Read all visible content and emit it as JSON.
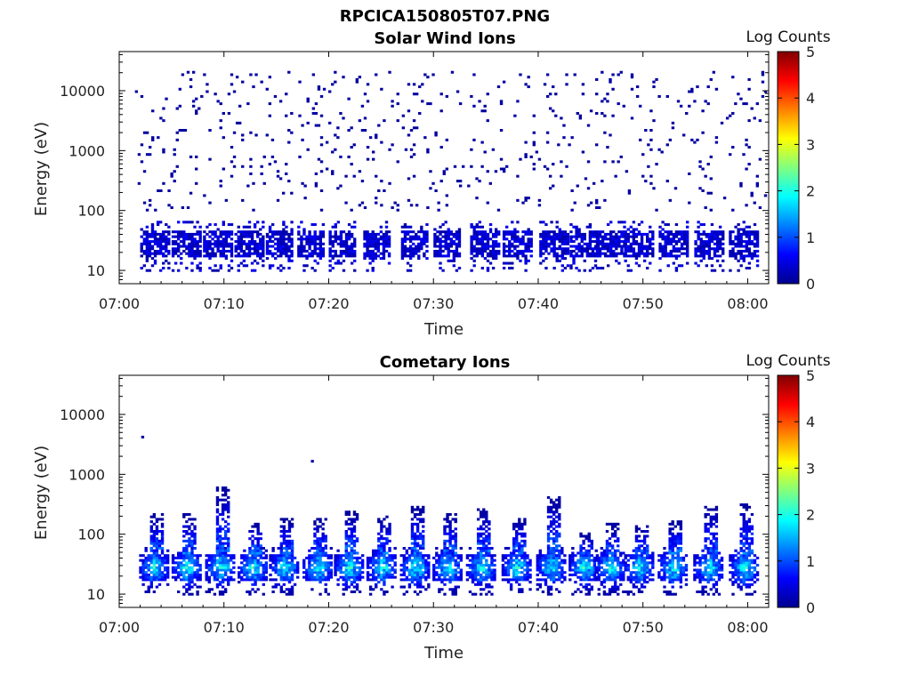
{
  "header": {
    "title": "RPCICA150805T07.PNG"
  },
  "chart_data": [
    {
      "type": "heatmap",
      "title": "Solar Wind Ions",
      "xlabel": "Time",
      "ylabel": "Energy (eV)",
      "x_tick_labels": [
        "07:00",
        "07:10",
        "07:20",
        "07:30",
        "07:40",
        "07:50",
        "08:00"
      ],
      "x_tick_minutes": [
        0,
        10,
        20,
        30,
        40,
        50,
        60
      ],
      "xlim_minutes": [
        0,
        62
      ],
      "y_scale": "log",
      "ylim": [
        6,
        45000
      ],
      "y_tick_labels": [
        "10",
        "100",
        "1000",
        "10000"
      ],
      "y_tick_values": [
        10,
        100,
        1000,
        10000
      ],
      "colorbar": {
        "label": "Log Counts",
        "ticks": [
          "0",
          "1",
          "2",
          "3",
          "4",
          "5"
        ],
        "range": [
          0,
          5
        ]
      },
      "bursts_minutes": [
        3.3,
        6.3,
        9.3,
        12.3,
        15.3,
        18.3,
        21.3,
        24.6,
        28.2,
        31.3,
        34.8,
        37.9,
        41.4,
        44.3,
        46.8,
        49.5,
        52.8,
        56.2,
        59.5
      ],
      "band_energy_eV": [
        18,
        45
      ],
      "scatter_energy_eV": [
        100,
        20000
      ],
      "typical_log_counts": 0.1,
      "max_log_counts": 0.6
    },
    {
      "type": "heatmap",
      "title": "Cometary Ions",
      "xlabel": "Time",
      "ylabel": "Energy (eV)",
      "x_tick_labels": [
        "07:00",
        "07:10",
        "07:20",
        "07:30",
        "07:40",
        "07:50",
        "08:00"
      ],
      "x_tick_minutes": [
        0,
        10,
        20,
        30,
        40,
        50,
        60
      ],
      "xlim_minutes": [
        0,
        62
      ],
      "y_scale": "log",
      "ylim": [
        6,
        45000
      ],
      "y_tick_labels": [
        "10",
        "100",
        "1000",
        "10000"
      ],
      "y_tick_values": [
        10,
        100,
        1000,
        10000
      ],
      "colorbar": {
        "label": "Log Counts",
        "ticks": [
          "0",
          "1",
          "2",
          "3",
          "4",
          "5"
        ],
        "range": [
          0,
          5
        ]
      },
      "bursts_minutes": [
        3.3,
        6.4,
        9.6,
        12.7,
        15.7,
        18.9,
        21.9,
        25.0,
        28.2,
        31.3,
        34.5,
        37.9,
        41.2,
        44.3,
        46.8,
        49.6,
        52.8,
        56.2,
        59.6
      ],
      "burst_peak_energy_eV": [
        220,
        220,
        600,
        150,
        180,
        180,
        240,
        200,
        280,
        220,
        260,
        180,
        420,
        100,
        150,
        130,
        160,
        280,
        300
      ],
      "band_energy_eV": [
        18,
        45
      ],
      "peak_log_counts": 2.3,
      "isolated_points": [
        {
          "minute": 2.1,
          "energy_eV": 4200
        },
        {
          "minute": 18.3,
          "energy_eV": 1700
        }
      ]
    }
  ]
}
